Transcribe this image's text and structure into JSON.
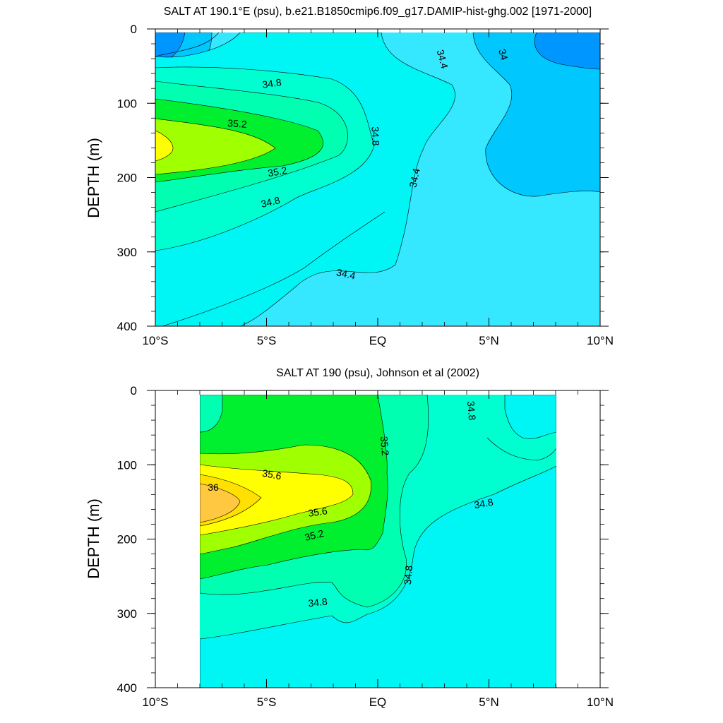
{
  "chart_data": [
    {
      "type": "contour",
      "title": "SALT AT 190.1°E (psu), b.e21.B1850cmip6.f09_g17.DAMIP-hist-ghg.002 [1971-2000]",
      "xlabel": "",
      "ylabel": "DEPTH (m)",
      "xlim": [
        -10,
        10
      ],
      "ylim": [
        400,
        0
      ],
      "x_ticks": [
        {
          "value": -10,
          "label": "10°S"
        },
        {
          "value": -5,
          "label": "5°S"
        },
        {
          "value": 0,
          "label": "EQ"
        },
        {
          "value": 5,
          "label": "5°N"
        },
        {
          "value": 10,
          "label": "10°N"
        }
      ],
      "y_ticks": [
        {
          "value": 0,
          "label": "0"
        },
        {
          "value": 100,
          "label": "100"
        },
        {
          "value": 200,
          "label": "200"
        },
        {
          "value": 300,
          "label": "300"
        },
        {
          "value": 400,
          "label": "400"
        }
      ],
      "data_extent": {
        "x": [
          -10,
          10
        ],
        "y": [
          5,
          400
        ]
      },
      "contour_labels": [
        {
          "text": "34.8",
          "x": -4.8,
          "y": 70
        },
        {
          "text": "35.2",
          "x": -6.3,
          "y": 124
        },
        {
          "text": "34.8",
          "x": -0.3,
          "y": 145
        },
        {
          "text": "35.2",
          "x": -4.6,
          "y": 185
        },
        {
          "text": "34.8",
          "x": -4.9,
          "y": 230
        },
        {
          "text": "34.4",
          "x": 2.8,
          "y": 50
        },
        {
          "text": "34",
          "x": 5.5,
          "y": 35
        },
        {
          "text": "34.4",
          "x": 1.8,
          "y": 200
        },
        {
          "text": "34.4",
          "x": -1.4,
          "y": 335
        }
      ]
    },
    {
      "type": "contour",
      "title": "SALT AT 190 (psu), Johnson et al (2002)",
      "xlabel": "",
      "ylabel": "DEPTH (m)",
      "xlim": [
        -10,
        10
      ],
      "ylim": [
        400,
        0
      ],
      "x_ticks": [
        {
          "value": -10,
          "label": "10°S"
        },
        {
          "value": -5,
          "label": "5°S"
        },
        {
          "value": 0,
          "label": "EQ"
        },
        {
          "value": 5,
          "label": "5°N"
        },
        {
          "value": 10,
          "label": "10°N"
        }
      ],
      "y_ticks": [
        {
          "value": 0,
          "label": "0"
        },
        {
          "value": 100,
          "label": "100"
        },
        {
          "value": 200,
          "label": "200"
        },
        {
          "value": 300,
          "label": "300"
        },
        {
          "value": 400,
          "label": "400"
        }
      ],
      "data_extent": {
        "x": [
          -8,
          8
        ],
        "y": [
          5,
          400
        ]
      },
      "contour_labels": [
        {
          "text": "35.6",
          "x": -5.3,
          "y": 110
        },
        {
          "text": "36",
          "x": -7.4,
          "y": 130
        },
        {
          "text": "35.6",
          "x": -2.7,
          "y": 160
        },
        {
          "text": "35.2",
          "x": -2.8,
          "y": 190
        },
        {
          "text": "35.2",
          "x": 0.2,
          "y": 70
        },
        {
          "text": "34.8",
          "x": 4.1,
          "y": 25
        },
        {
          "text": "34.8",
          "x": 4.8,
          "y": 150
        },
        {
          "text": "34.8",
          "x": 1.5,
          "y": 255
        },
        {
          "text": "34.8",
          "x": -2.8,
          "y": 285
        }
      ]
    }
  ],
  "colors": {
    "34.0": "#00c8ff",
    "33.8": "#0096ff",
    "34.4": "#36e8ff",
    "34.6": "#00f5f5",
    "34.8": "#00ffd0",
    "35.0": "#00ffb0",
    "35.2": "#00f030",
    "35.4": "#a0ff00",
    "35.6": "#ffff00",
    "35.8": "#ffe000",
    "36.0": "#ffc840"
  }
}
